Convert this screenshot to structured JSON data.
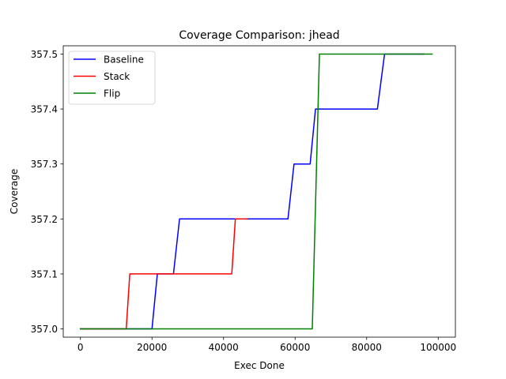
{
  "chart_data": {
    "type": "line",
    "title": "Coverage Comparison: jhead",
    "xlabel": "Exec Done",
    "ylabel": "Coverage",
    "xlim": [
      -4800,
      104800
    ],
    "ylim": [
      356.985,
      357.515
    ],
    "xticks": [
      0,
      20000,
      40000,
      60000,
      80000,
      100000
    ],
    "xtick_labels": [
      "0",
      "20000",
      "40000",
      "60000",
      "80000",
      "100000"
    ],
    "yticks": [
      357.0,
      357.1,
      357.2,
      357.3,
      357.4,
      357.5
    ],
    "ytick_labels": [
      "357.0",
      "357.1",
      "357.2",
      "357.3",
      "357.4",
      "357.5"
    ],
    "grid": false,
    "legend": "top-left",
    "series": [
      {
        "name": "Baseline",
        "color": "#0000ff",
        "x": [
          0,
          20000,
          21500,
          26000,
          27700,
          58000,
          59700,
          64200,
          65700,
          83000,
          85000,
          96000
        ],
        "y": [
          357.0,
          357.0,
          357.1,
          357.1,
          357.2,
          357.2,
          357.3,
          357.3,
          357.4,
          357.4,
          357.5,
          357.5
        ]
      },
      {
        "name": "Stack",
        "color": "#ff0000",
        "x": [
          0,
          12800,
          13800,
          42300,
          43300,
          46500
        ],
        "y": [
          357.0,
          357.0,
          357.1,
          357.1,
          357.2,
          357.2
        ]
      },
      {
        "name": "Flip",
        "color": "#008000",
        "x": [
          0,
          64800,
          66800,
          98300
        ],
        "y": [
          357.0,
          357.0,
          357.5,
          357.5
        ]
      }
    ]
  }
}
